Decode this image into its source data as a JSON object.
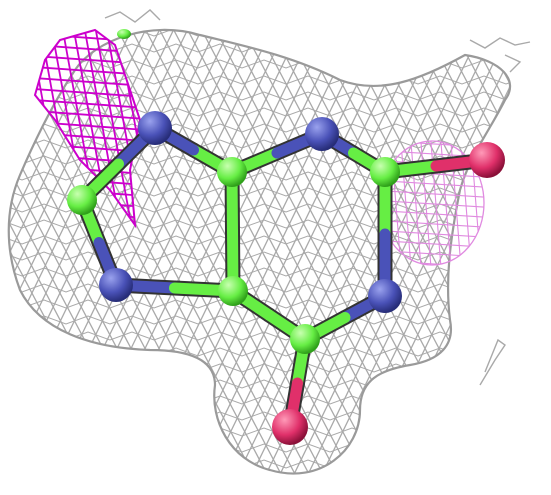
{
  "scene": {
    "background": "#ffffff",
    "mesh_color": "#a9a9a9",
    "diff_density_color": "#cc00cc",
    "diff_density_faint_color": "#e08ae0",
    "carbon_color": "#66ee44",
    "nitrogen_color": "#4a52b8",
    "oxygen_color": "#e0306a",
    "atoms": [
      {
        "id": "N1",
        "element": "N"
      },
      {
        "id": "C2",
        "element": "C"
      },
      {
        "id": "N3",
        "element": "N"
      },
      {
        "id": "C4",
        "element": "C"
      },
      {
        "id": "C5",
        "element": "C"
      },
      {
        "id": "C6",
        "element": "C"
      },
      {
        "id": "O6",
        "element": "O"
      },
      {
        "id": "N7",
        "element": "N"
      },
      {
        "id": "C8",
        "element": "C"
      },
      {
        "id": "N9",
        "element": "N"
      },
      {
        "id": "O2",
        "element": "O"
      }
    ]
  }
}
